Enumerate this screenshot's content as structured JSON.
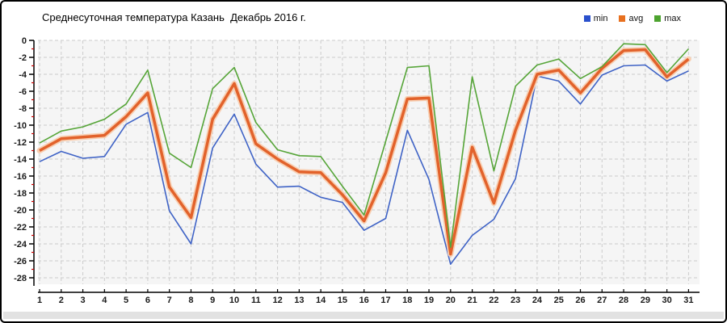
{
  "title": "Среднесуточная температура Казань  Декабрь 2016 г.",
  "legend": {
    "items": [
      {
        "label": "min",
        "color": "#2a50cc"
      },
      {
        "label": "avg",
        "color": "#e8701f"
      },
      {
        "label": "max",
        "color": "#4da32f"
      }
    ]
  },
  "chart_data": {
    "type": "line",
    "x": [
      1,
      2,
      3,
      4,
      5,
      6,
      7,
      8,
      9,
      10,
      11,
      12,
      13,
      14,
      15,
      16,
      17,
      18,
      19,
      20,
      21,
      22,
      23,
      24,
      25,
      26,
      27,
      28,
      29,
      30,
      31
    ],
    "x_tick_labels": [
      "1",
      "2",
      "3",
      "4",
      "5",
      "6",
      "7",
      "8",
      "9",
      "10",
      "11",
      "12",
      "13",
      "14",
      "15",
      "16",
      "17",
      "18",
      "19",
      "20",
      "21",
      "22",
      "23",
      "24",
      "25",
      "26",
      "27",
      "28",
      "29",
      "30",
      "31"
    ],
    "y_tick_labels": [
      "0",
      "-2",
      "-4",
      "-6",
      "-8",
      "-10",
      "-12",
      "-14",
      "-16",
      "-18",
      "-20",
      "-22",
      "-24",
      "-26",
      "-28"
    ],
    "ylim": [
      -28,
      0
    ],
    "ytick_step": 2,
    "grid": true,
    "legend_position": "top-right",
    "series": [
      {
        "name": "min",
        "color": "#3f63c6",
        "width": 1.6,
        "values": [
          -14.3,
          -13.1,
          -13.9,
          -13.7,
          -9.9,
          -8.5,
          -20.1,
          -24.0,
          -12.7,
          -8.7,
          -14.6,
          -17.3,
          -17.2,
          -18.5,
          -19.1,
          -22.4,
          -21.0,
          -10.6,
          -16.4,
          -26.4,
          -23.0,
          -21.1,
          -16.3,
          -4.2,
          -4.8,
          -7.5,
          -4.1,
          -3.0,
          -2.9,
          -4.8,
          -3.6
        ]
      },
      {
        "name": "avg",
        "color": "#e2622b",
        "halo": "#f8cfb2",
        "width": 3.5,
        "values": [
          -13.0,
          -11.6,
          -11.4,
          -11.2,
          -9.0,
          -6.2,
          -17.3,
          -20.9,
          -9.3,
          -5.1,
          -12.2,
          -14.0,
          -15.5,
          -15.6,
          -18.2,
          -21.3,
          -15.6,
          -6.9,
          -6.8,
          -25.2,
          -12.6,
          -19.2,
          -10.6,
          -4.0,
          -3.5,
          -6.2,
          -3.3,
          -1.2,
          -1.1,
          -4.3,
          -2.2
        ]
      },
      {
        "name": "max",
        "color": "#56a538",
        "width": 1.6,
        "values": [
          -12.1,
          -10.7,
          -10.2,
          -9.3,
          -7.5,
          -3.5,
          -13.3,
          -15.0,
          -5.7,
          -3.2,
          -9.7,
          -12.9,
          -13.6,
          -13.7,
          -17.2,
          -20.6,
          -11.9,
          -3.2,
          -3.0,
          -24.4,
          -4.3,
          -15.4,
          -5.4,
          -2.9,
          -2.2,
          -4.5,
          -3.1,
          -0.4,
          -0.5,
          -3.8,
          -1.0
        ]
      }
    ],
    "title": "Среднесуточная температура Казань Декабрь 2016 г."
  },
  "style": {
    "plot_bg": "#f5f5f5",
    "grid_color": "#cccccc",
    "axis_color": "#000000",
    "minor_tick_color": "#cc0000",
    "tick_label_color": "#1a1a1a"
  }
}
